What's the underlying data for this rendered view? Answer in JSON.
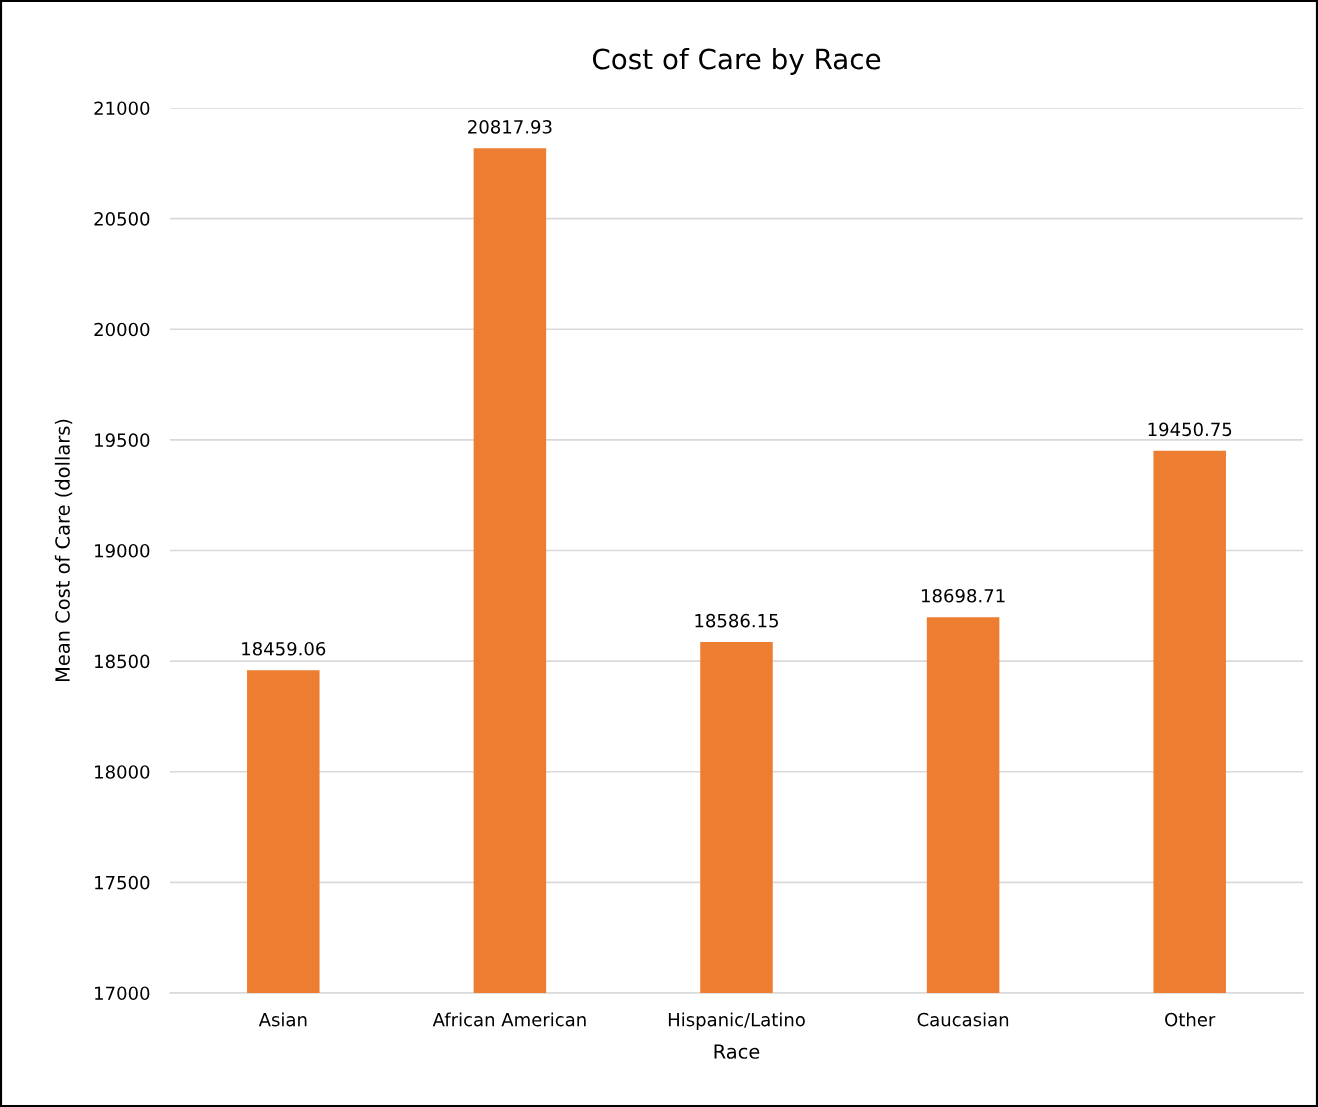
{
  "chart_data": {
    "type": "bar",
    "title": "Cost of Care by Race",
    "xlabel": "Race",
    "ylabel": "Mean Cost of Care (dollars)",
    "categories": [
      "Asian",
      "African American",
      "Hispanic/Latino",
      "Caucasian",
      "Other"
    ],
    "values": [
      18459.06,
      20817.93,
      18586.15,
      18698.71,
      19450.75
    ],
    "color": "#ed7d31",
    "ylim": [
      17000,
      21000
    ],
    "yticks": [
      17000,
      17500,
      18000,
      18500,
      19000,
      19500,
      20000,
      20500,
      21000
    ],
    "grid": "y",
    "data_labels": true
  }
}
